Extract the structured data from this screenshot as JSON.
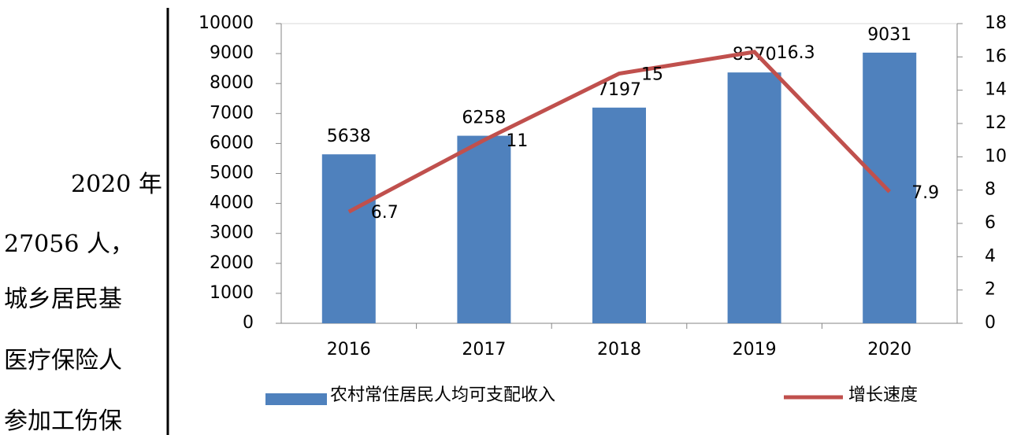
{
  "background_text": [
    "2020 年",
    "27056 人，",
    "城乡居民基",
    "医疗保险人",
    "参加工伤保"
  ],
  "chart_data": {
    "type": "bar",
    "categories": [
      "2016",
      "2017",
      "2018",
      "2019",
      "2020"
    ],
    "series": [
      {
        "name": "农村常住居民人均可支配收入",
        "color": "#4f81bd",
        "type": "bar",
        "values": [
          5638,
          6258,
          7197,
          8370,
          9031
        ]
      },
      {
        "name": "增长速度",
        "color": "#c0504d",
        "type": "line",
        "axis": "y2",
        "values": [
          6.7,
          11,
          15,
          16.3,
          7.9
        ]
      }
    ],
    "ylim": [
      0,
      10000
    ],
    "yticks": [
      0,
      1000,
      2000,
      3000,
      4000,
      5000,
      6000,
      7000,
      8000,
      9000,
      10000
    ],
    "y2lim": [
      0,
      18
    ],
    "y2ticks": [
      0,
      2,
      4,
      6,
      8,
      10,
      12,
      14,
      16,
      18
    ],
    "grid": false,
    "legend": "bottom"
  }
}
